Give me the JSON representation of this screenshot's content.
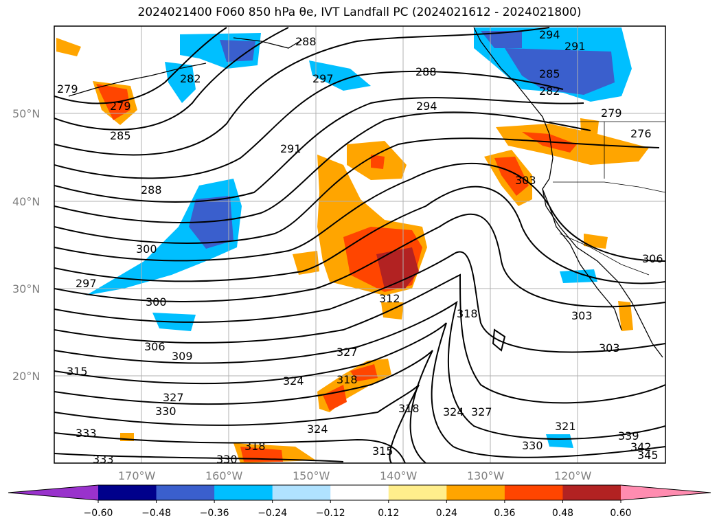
{
  "title": "2024021400 F060 850 hPa θe, IVT Landfall PC (2024021612 - 2024021800)",
  "lat_labels": [
    "50°N",
    "40°N",
    "30°N",
    "20°N"
  ],
  "lon_labels": [
    "170°W",
    "160°W",
    "150°W",
    "140°W",
    "130°W",
    "120°W"
  ],
  "contour_labels": [
    "294",
    "291",
    "288",
    "282",
    "297",
    "288",
    "285",
    "282",
    "279",
    "276",
    "279",
    "285",
    "294",
    "291",
    "279",
    "288",
    "300",
    "297",
    "303",
    "306",
    "303",
    "303",
    "300",
    "306",
    "309",
    "315",
    "327",
    "330",
    "333",
    "333",
    "312",
    "318",
    "327",
    "324",
    "318",
    "324",
    "318",
    "324",
    "327",
    "321",
    "330",
    "315",
    "318",
    "330",
    "339",
    "342",
    "345"
  ],
  "colorbar": {
    "ticks": [
      "−0.60",
      "−0.48",
      "−0.36",
      "−0.24",
      "−0.12",
      "0.12",
      "0.24",
      "0.36",
      "0.48",
      "0.60"
    ],
    "colors": [
      "#9932cc",
      "#00008b",
      "#3a5fcd",
      "#00bfff",
      "#b0e2ff",
      "#ffffff",
      "#ffee8c",
      "#ffa500",
      "#ff4500",
      "#b22222",
      "#ff8cb0"
    ]
  }
}
